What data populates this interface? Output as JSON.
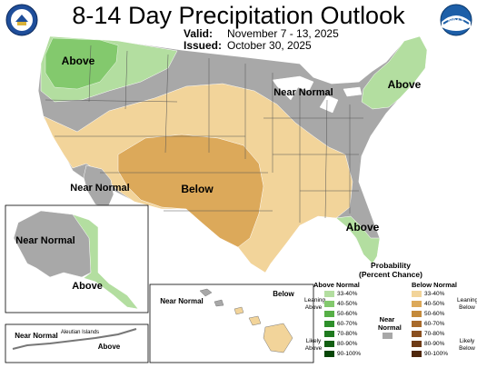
{
  "header": {
    "title": "8-14 Day Precipitation Outlook",
    "valid_label": "Valid:",
    "valid_value": "November 7 - 13, 2025",
    "issued_label": "Issued:",
    "issued_value": "October 30, 2025"
  },
  "logos": {
    "left": "Department of Commerce seal",
    "right": "NOAA",
    "right_text": "NOAA"
  },
  "map": {
    "conus_labels": [
      "Above",
      "Near Normal",
      "Above",
      "Near Normal",
      "Below",
      "Above"
    ],
    "alaska_labels": [
      "Near Normal",
      "Above",
      "Near Normal",
      "Above"
    ],
    "aleutian_label": "Aleutian Islands",
    "hawaii_labels": [
      "Near Normal",
      "Below"
    ]
  },
  "legend": {
    "title": "Probability (Percent Chance)",
    "above_title": "Above Normal",
    "near_title": "Near Normal",
    "below_title": "Below Normal",
    "above_ranges": [
      "33-40%",
      "40-50%",
      "50-60%",
      "60-70%",
      "70-80%",
      "80-90%",
      "90-100%"
    ],
    "below_ranges": [
      "33-40%",
      "40-50%",
      "50-60%",
      "60-70%",
      "70-80%",
      "80-90%",
      "90-100%"
    ],
    "above_colors": [
      "#b3dea0",
      "#83c96d",
      "#56af46",
      "#2d8f2a",
      "#1f7a1f",
      "#125f12",
      "#074607"
    ],
    "near_color": "#a8a8a8",
    "below_colors": [
      "#f2d49a",
      "#dca95a",
      "#c48a3b",
      "#a86b2b",
      "#8a5020",
      "#6e3b16",
      "#4f270c"
    ],
    "leaning_above": "Leaning Above",
    "likely_above": "Likely Above",
    "leaning_below": "Leaning Below",
    "likely_below": "Likely Below"
  },
  "colors": {
    "near_gray": "#a8a8a8",
    "above_light": "#b3dea0",
    "above_mid": "#83c96d",
    "below_light": "#f2d49a",
    "below_mid": "#dca95a",
    "water": "#ffffff"
  }
}
